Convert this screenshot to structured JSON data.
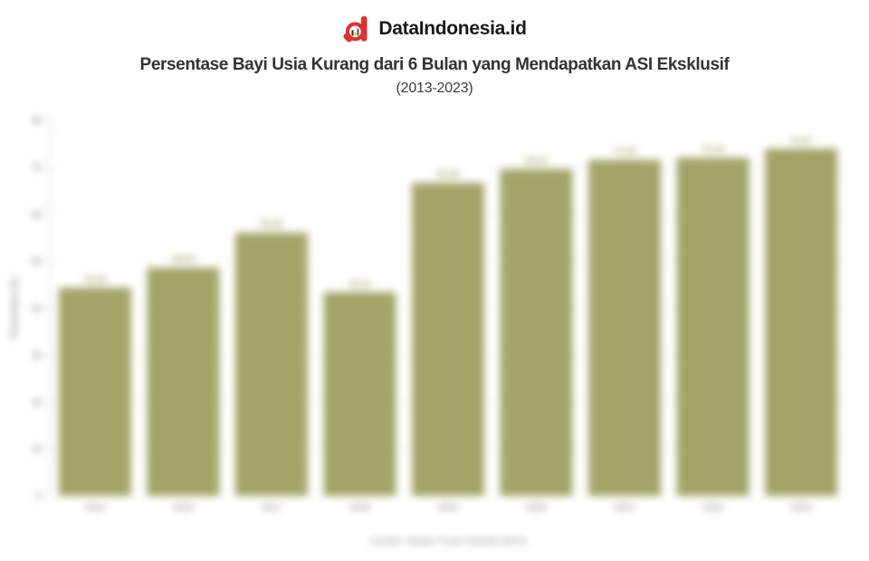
{
  "header": {
    "brand": "DataIndonesia.id",
    "logo_icon": "magnifier-d-logo",
    "title": "Persentase Bayi Usia Kurang dari 6 Bulan yang Mendapatkan ASI Eksklusif",
    "subtitle": "(2013-2023)"
  },
  "colors": {
    "bar": "#a3a468",
    "brand_red": "#e03030",
    "title_text": "#333333",
    "axis_text": "#6b6b6b",
    "grid": "#f2f2f0",
    "axis_line": "#cccccc",
    "source_text": "#8a8a8a"
  },
  "chart_data": {
    "type": "bar",
    "title": "Persentase Bayi Usia Kurang dari 6 Bulan yang Mendapatkan ASI Eksklusif (2013-2023)",
    "categories": [
      "2013",
      "2015",
      "2017",
      "2018",
      "2019",
      "2020",
      "2021",
      "2022",
      "2023"
    ],
    "values": [
      44.36,
      48.63,
      56.06,
      43.41,
      66.69,
      69.62,
      71.58,
      72.04,
      73.97
    ],
    "value_labels": [
      "44,36",
      "48,63",
      "56,06",
      "43,41",
      "66,69",
      "69,62",
      "71,58",
      "72,04",
      "73,97"
    ],
    "xlabel": "",
    "ylabel": "Persentase (%)",
    "ylim": [
      0,
      80
    ],
    "yticks": [
      0,
      10,
      20,
      30,
      40,
      50,
      60,
      70,
      80
    ],
    "grid": true,
    "legend": false,
    "source": "Sumber: Badan Pusat Statistik (BPS)"
  }
}
